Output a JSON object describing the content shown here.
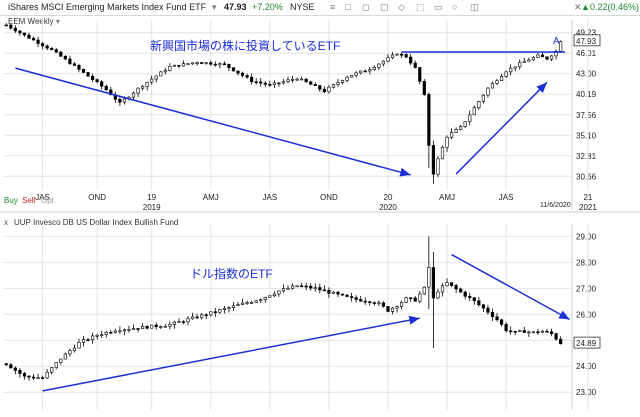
{
  "header": {
    "fund_name": "iShares MSCI Emerging Markets Index Fund ETF",
    "price": "47.93",
    "change": "+7.20%",
    "exchange": "NYSE",
    "right_value": "0.22(0.46%)"
  },
  "top_panel": {
    "series_label": "EEM Weekly",
    "buy": "Buy",
    "sell": "Sell",
    "opt": "Opt",
    "annotation": "新興国市場の株に投資しているETF",
    "marker": "A",
    "date_badge": "11/6/2020",
    "price_badge": "47.93"
  },
  "bottom_panel": {
    "series_label": "UUP Invesco DB US Dollar Index Bullish Fund",
    "annotation": "ドル指数のETF",
    "price_badge": "24.89"
  },
  "colors": {
    "up": "#ffffff",
    "down": "#000000",
    "arrow": "#1b2fd6",
    "grid": "#e4e4e4",
    "text": "#222222"
  },
  "chart_data": [
    {
      "type": "candlestick",
      "title": "EEM Weekly",
      "y_ticks": [
        49.23,
        46.01,
        43.0,
        40.19,
        37.56,
        35.1,
        32.81,
        30.66
      ],
      "ylim": [
        29.5,
        51.0
      ],
      "scale": "log",
      "x_ticks": [
        {
          "i": 8,
          "label": "JAS"
        },
        {
          "i": 20,
          "label": "OND"
        },
        {
          "i": 32,
          "label": "19",
          "sub": "2019"
        },
        {
          "i": 45,
          "label": "AMJ"
        },
        {
          "i": 58,
          "label": "JAS"
        },
        {
          "i": 71,
          "label": "OND"
        },
        {
          "i": 84,
          "label": "20",
          "sub": "2020"
        },
        {
          "i": 97,
          "label": "AMJ"
        },
        {
          "i": 110,
          "label": "JAS"
        },
        {
          "i": 128,
          "label": "21",
          "sub": "2021"
        }
      ],
      "keypoints": [
        [
          0,
          50.5
        ],
        [
          4,
          48.8
        ],
        [
          10,
          46.5
        ],
        [
          16,
          43.6
        ],
        [
          22,
          40.8
        ],
        [
          25,
          39.0
        ],
        [
          30,
          41.4
        ],
        [
          36,
          44.0
        ],
        [
          42,
          44.7
        ],
        [
          48,
          44.3
        ],
        [
          54,
          42.0
        ],
        [
          58,
          41.4
        ],
        [
          64,
          42.4
        ],
        [
          70,
          40.6
        ],
        [
          75,
          42.6
        ],
        [
          80,
          43.7
        ],
        [
          84,
          45.2
        ],
        [
          86,
          46.0
        ],
        [
          88,
          45.5
        ],
        [
          90,
          43.8
        ],
        [
          92,
          40.0
        ],
        [
          93,
          34.0
        ],
        [
          94,
          31.0
        ],
        [
          95,
          32.4
        ],
        [
          97,
          35.0
        ],
        [
          100,
          36.0
        ],
        [
          103,
          38.4
        ],
        [
          106,
          41.0
        ],
        [
          110,
          43.4
        ],
        [
          114,
          44.8
        ],
        [
          117,
          45.6
        ],
        [
          119,
          45.2
        ],
        [
          121,
          46.3
        ],
        [
          122,
          47.93
        ]
      ],
      "trendlines": [
        {
          "from": [
            2,
            43.8
          ],
          "to": [
            89,
            30.8
          ]
        },
        {
          "from": [
            99,
            30.9
          ],
          "to": [
            119,
            41.8
          ]
        },
        {
          "horizontal": 46.2,
          "from_i": 87,
          "to_i": 123
        }
      ]
    },
    {
      "type": "candlestick",
      "title": "UUP Invesco DB US Dollar Index Bullish Fund",
      "y_ticks": [
        29.0,
        28.0,
        27.0,
        26.0,
        25.0,
        24.0,
        23.0
      ],
      "ylim": [
        22.7,
        29.4
      ],
      "x_ticks_shared": true,
      "keypoints": [
        [
          0,
          24.1
        ],
        [
          4,
          23.6
        ],
        [
          8,
          23.55
        ],
        [
          12,
          24.3
        ],
        [
          16,
          24.9
        ],
        [
          20,
          25.2
        ],
        [
          24,
          25.4
        ],
        [
          30,
          25.5
        ],
        [
          36,
          25.6
        ],
        [
          42,
          25.9
        ],
        [
          48,
          26.2
        ],
        [
          52,
          26.4
        ],
        [
          56,
          26.6
        ],
        [
          60,
          26.9
        ],
        [
          64,
          27.1
        ],
        [
          68,
          27.0
        ],
        [
          72,
          26.8
        ],
        [
          76,
          26.6
        ],
        [
          80,
          26.5
        ],
        [
          82,
          26.4
        ],
        [
          84,
          26.15
        ],
        [
          86,
          26.35
        ],
        [
          88,
          26.6
        ],
        [
          90,
          26.55
        ],
        [
          92,
          27.0
        ],
        [
          93,
          27.8
        ],
        [
          94,
          26.6
        ],
        [
          95,
          26.9
        ],
        [
          97,
          27.2
        ],
        [
          100,
          26.85
        ],
        [
          103,
          26.5
        ],
        [
          106,
          26.1
        ],
        [
          108,
          25.8
        ],
        [
          110,
          25.4
        ],
        [
          112,
          25.3
        ],
        [
          114,
          25.35
        ],
        [
          116,
          25.3
        ],
        [
          118,
          25.35
        ],
        [
          120,
          25.25
        ],
        [
          122,
          24.89
        ]
      ],
      "trendlines": [
        {
          "from": [
            8,
            23.05
          ],
          "to": [
            91,
            25.85
          ]
        },
        {
          "from": [
            98,
            28.3
          ],
          "to": [
            124,
            25.8
          ]
        }
      ]
    }
  ]
}
